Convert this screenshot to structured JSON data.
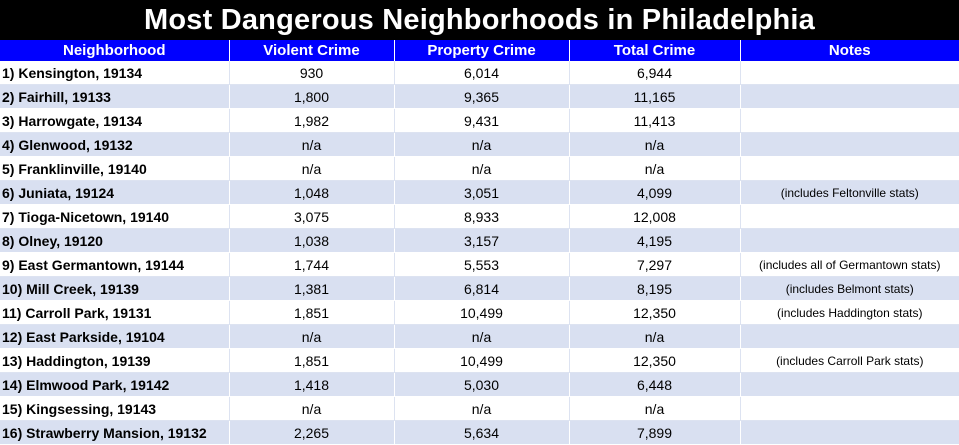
{
  "title": "Most Dangerous Neighborhoods in Philadelphia",
  "columns": [
    "Neighborhood",
    "Violent Crime",
    "Property Crime",
    "Total Crime",
    "Notes"
  ],
  "colors": {
    "header_bg": "#0000ff",
    "title_bg": "#000000",
    "band": "#d9e0f1"
  },
  "rows": [
    {
      "neighborhood": "1) Kensington, 19134",
      "violent": "930",
      "property": "6,014",
      "total": "6,944",
      "notes": ""
    },
    {
      "neighborhood": "2) Fairhill, 19133",
      "violent": "1,800",
      "property": "9,365",
      "total": "11,165",
      "notes": ""
    },
    {
      "neighborhood": "3) Harrowgate, 19134",
      "violent": "1,982",
      "property": "9,431",
      "total": "11,413",
      "notes": ""
    },
    {
      "neighborhood": "4) Glenwood, 19132",
      "violent": "n/a",
      "property": "n/a",
      "total": "n/a",
      "notes": ""
    },
    {
      "neighborhood": "5) Franklinville, 19140",
      "violent": "n/a",
      "property": "n/a",
      "total": "n/a",
      "notes": ""
    },
    {
      "neighborhood": "6) Juniata, 19124",
      "violent": "1,048",
      "property": "3,051",
      "total": "4,099",
      "notes": "(includes Feltonville stats)"
    },
    {
      "neighborhood": "7) Tioga-Nicetown, 19140",
      "violent": "3,075",
      "property": "8,933",
      "total": "12,008",
      "notes": ""
    },
    {
      "neighborhood": "8) Olney, 19120",
      "violent": "1,038",
      "property": "3,157",
      "total": "4,195",
      "notes": ""
    },
    {
      "neighborhood": "9) East Germantown, 19144",
      "violent": "1,744",
      "property": "5,553",
      "total": "7,297",
      "notes": "(includes all of Germantown stats)"
    },
    {
      "neighborhood": "10) Mill Creek, 19139",
      "violent": "1,381",
      "property": "6,814",
      "total": "8,195",
      "notes": "(includes Belmont stats)"
    },
    {
      "neighborhood": "11) Carroll Park, 19131",
      "violent": "1,851",
      "property": "10,499",
      "total": "12,350",
      "notes": "(includes Haddington stats)"
    },
    {
      "neighborhood": "12) East Parkside, 19104",
      "violent": "n/a",
      "property": "n/a",
      "total": "n/a",
      "notes": ""
    },
    {
      "neighborhood": "13) Haddington, 19139",
      "violent": "1,851",
      "property": "10,499",
      "total": "12,350",
      "notes": "(includes Carroll Park stats)"
    },
    {
      "neighborhood": "14) Elmwood Park, 19142",
      "violent": "1,418",
      "property": "5,030",
      "total": "6,448",
      "notes": ""
    },
    {
      "neighborhood": "15) Kingsessing, 19143",
      "violent": "n/a",
      "property": "n/a",
      "total": "n/a",
      "notes": ""
    },
    {
      "neighborhood": "16) Strawberry Mansion, 19132",
      "violent": "2,265",
      "property": "5,634",
      "total": "7,899",
      "notes": ""
    }
  ]
}
